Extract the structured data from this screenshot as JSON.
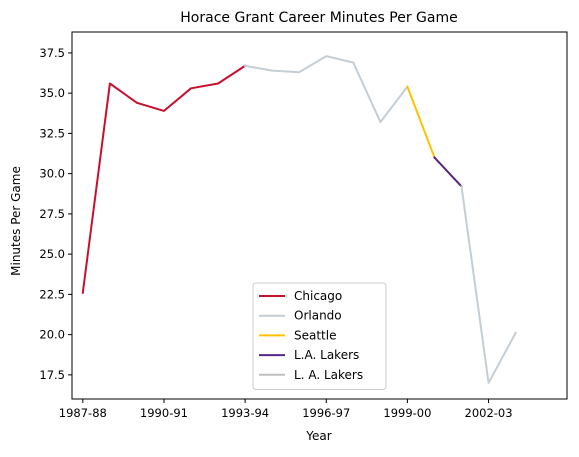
{
  "chart_data": {
    "type": "line",
    "title": "Horace Grant Career Minutes Per Game",
    "xlabel": "Year",
    "ylabel": "Minutes Per Game",
    "x_ticks": [
      "1987-88",
      "1990-91",
      "1993-94",
      "1996-97",
      "1999-00",
      "2002-03"
    ],
    "y_ticks": [
      "17.5",
      "20.0",
      "22.5",
      "25.0",
      "27.5",
      "30.0",
      "32.5",
      "35.0",
      "37.5"
    ],
    "ylim": [
      16.0,
      38.8
    ],
    "grid": false,
    "legend_position": "lower-center",
    "series": [
      {
        "name": "Chicago",
        "color": "#c8102e",
        "points": [
          {
            "x": "1987-88",
            "y": 22.6
          },
          {
            "x": "1988-89",
            "y": 35.6
          },
          {
            "x": "1989-90",
            "y": 34.4
          },
          {
            "x": "1990-91",
            "y": 33.9
          },
          {
            "x": "1991-92",
            "y": 35.3
          },
          {
            "x": "1992-93",
            "y": 35.6
          },
          {
            "x": "1993-94",
            "y": 36.7
          }
        ]
      },
      {
        "name": "Orlando",
        "color": "#c4ced4",
        "points": [
          {
            "x": "1993-94",
            "y": 36.7
          },
          {
            "x": "1994-95",
            "y": 36.4
          },
          {
            "x": "1995-96",
            "y": 36.3
          },
          {
            "x": "1996-97",
            "y": 37.3
          },
          {
            "x": "1997-98",
            "y": 36.9
          },
          {
            "x": "1998-99",
            "y": 33.2
          },
          {
            "x": "1999-00",
            "y": 35.4
          }
        ]
      },
      {
        "name": "Seattle",
        "color": "#ffc200",
        "points": [
          {
            "x": "1999-00",
            "y": 35.4
          },
          {
            "x": "2000-01",
            "y": 31.0
          }
        ]
      },
      {
        "name": "L.A. Lakers",
        "color": "#552583",
        "points": [
          {
            "x": "2000-01",
            "y": 31.0
          },
          {
            "x": "2001-02",
            "y": 29.2
          }
        ]
      },
      {
        "name": "L. A. Lakers",
        "color": "#bec0c2",
        "points": []
      },
      {
        "name": "",
        "color": "#c4ced4",
        "points": [
          {
            "x": "2001-02",
            "y": 29.2
          },
          {
            "x": "2002-03",
            "y": 17.0
          },
          {
            "x": "2003-04",
            "y": 20.1
          }
        ]
      }
    ]
  }
}
